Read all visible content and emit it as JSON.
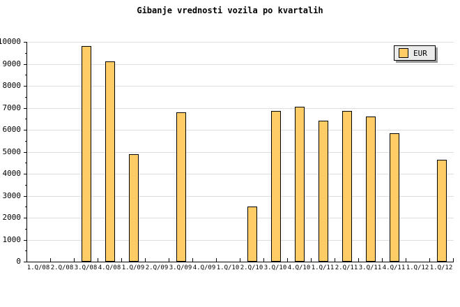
{
  "chart_data": {
    "type": "bar",
    "title": "Gibanje vrednosti vozila po kvartalih",
    "categories": [
      "1.Q/08",
      "2.Q/08",
      "3.Q/08",
      "4.Q/08",
      "1.Q/09",
      "2.Q/09",
      "3.Q/09",
      "4.Q/09",
      "1.Q/10",
      "2.Q/10",
      "3.Q/10",
      "4.Q/10",
      "1.Q/11",
      "2.Q/11",
      "3.Q/11",
      "4.Q/11",
      "1.Q/12",
      "1.Q/12"
    ],
    "series": [
      {
        "name": "EUR",
        "values": [
          null,
          null,
          9800,
          9100,
          4900,
          null,
          6800,
          null,
          null,
          2500,
          6850,
          7050,
          6400,
          6850,
          6600,
          5850,
          null,
          4650
        ]
      }
    ],
    "xlabel": "",
    "ylabel": "",
    "ylim": [
      0,
      10000
    ],
    "ytick_step": 1000,
    "y_minor_tick_step": 500,
    "grid": "horizontal-major",
    "legend_position": "top-right",
    "colors": {
      "bar_fill": "#FFCC66",
      "bar_border": "#000000",
      "grid": "#DDDDDD",
      "axis": "#000000",
      "legend_bg": "#EBEBEB",
      "legend_shadow": "#999999",
      "background": "#FFFFFF"
    }
  }
}
